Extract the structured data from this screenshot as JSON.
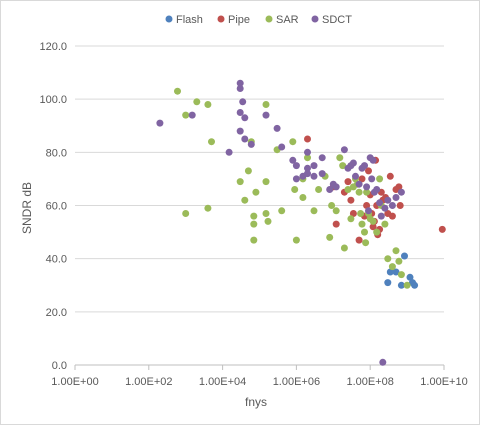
{
  "chart_data": {
    "type": "scatter",
    "title": "",
    "xlabel": "fnys",
    "ylabel": "SNDR dB",
    "x_scale": "log",
    "xlim": [
      1,
      10000000000
    ],
    "ylim": [
      0,
      120
    ],
    "x_ticks": [
      1,
      100,
      10000,
      1000000,
      100000000,
      10000000000
    ],
    "x_tick_labels": [
      "1.00E+00",
      "1.00E+02",
      "1.00E+04",
      "1.00E+06",
      "1.00E+08",
      "1.00E+10"
    ],
    "y_ticks": [
      0,
      20,
      40,
      60,
      80,
      100,
      120
    ],
    "y_tick_labels": [
      "0.0",
      "20.0",
      "40.0",
      "60.0",
      "80.0",
      "100.0",
      "120.0"
    ],
    "grid": "horizontal",
    "legend": "top",
    "series": [
      {
        "name": "Flash",
        "color": "#4f81bd",
        "points": [
          [
            300000000,
            31
          ],
          [
            350000000,
            35
          ],
          [
            500000000,
            35
          ],
          [
            700000000,
            30
          ],
          [
            850000000,
            41
          ],
          [
            1200000000,
            33
          ],
          [
            1400000000,
            31
          ],
          [
            1600000000,
            30
          ]
        ]
      },
      {
        "name": "Pipe",
        "color": "#c0504d",
        "points": [
          [
            2000000,
            85
          ],
          [
            10000000,
            67
          ],
          [
            12000000,
            53
          ],
          [
            20000000,
            65
          ],
          [
            25000000,
            69
          ],
          [
            30000000,
            62
          ],
          [
            35000000,
            57
          ],
          [
            50000000,
            47
          ],
          [
            60000000,
            70
          ],
          [
            70000000,
            56
          ],
          [
            80000000,
            60
          ],
          [
            90000000,
            73
          ],
          [
            100000000,
            64
          ],
          [
            110000000,
            57
          ],
          [
            120000000,
            52
          ],
          [
            130000000,
            54
          ],
          [
            140000000,
            77
          ],
          [
            150000000,
            60
          ],
          [
            160000000,
            49
          ],
          [
            180000000,
            51
          ],
          [
            200000000,
            65
          ],
          [
            220000000,
            62
          ],
          [
            260000000,
            63
          ],
          [
            300000000,
            57
          ],
          [
            350000000,
            71
          ],
          [
            400000000,
            56
          ],
          [
            500000000,
            66
          ],
          [
            600000000,
            67
          ],
          [
            650000000,
            60
          ],
          [
            9000000000,
            51
          ]
        ]
      },
      {
        "name": "SAR",
        "color": "#9bbb59",
        "points": [
          [
            600,
            103
          ],
          [
            1000,
            94
          ],
          [
            1000,
            57
          ],
          [
            2000,
            99
          ],
          [
            4000,
            98
          ],
          [
            4000,
            59
          ],
          [
            5000,
            84
          ],
          [
            30000,
            69
          ],
          [
            40000,
            62
          ],
          [
            50000,
            73
          ],
          [
            60000,
            84
          ],
          [
            70000,
            56
          ],
          [
            70000,
            53
          ],
          [
            70000,
            47
          ],
          [
            80000,
            65
          ],
          [
            150000,
            98
          ],
          [
            150000,
            69
          ],
          [
            150000,
            57
          ],
          [
            170000,
            54
          ],
          [
            300000,
            81
          ],
          [
            400000,
            58
          ],
          [
            800000,
            84
          ],
          [
            900000,
            66
          ],
          [
            1000000,
            47
          ],
          [
            1500000,
            70
          ],
          [
            1500000,
            63
          ],
          [
            2000000,
            78
          ],
          [
            3000000,
            58
          ],
          [
            4000000,
            66
          ],
          [
            6000000,
            71
          ],
          [
            8000000,
            48
          ],
          [
            9000000,
            60
          ],
          [
            12000000,
            58
          ],
          [
            15000000,
            78
          ],
          [
            18000000,
            75
          ],
          [
            20000000,
            44
          ],
          [
            25000000,
            66
          ],
          [
            30000000,
            55
          ],
          [
            35000000,
            67
          ],
          [
            40000000,
            70
          ],
          [
            45000000,
            68
          ],
          [
            50000000,
            65
          ],
          [
            55000000,
            57
          ],
          [
            60000000,
            53
          ],
          [
            70000000,
            50
          ],
          [
            75000000,
            46
          ],
          [
            80000000,
            65
          ],
          [
            90000000,
            57
          ],
          [
            100000000,
            55
          ],
          [
            120000000,
            54
          ],
          [
            150000000,
            50
          ],
          [
            180000000,
            70
          ],
          [
            200000000,
            60
          ],
          [
            250000000,
            53
          ],
          [
            300000000,
            40
          ],
          [
            400000000,
            37
          ],
          [
            500000000,
            43
          ],
          [
            600000000,
            39
          ],
          [
            700000000,
            34
          ],
          [
            1000000000,
            30
          ]
        ]
      },
      {
        "name": "SDCT",
        "color": "#8064a2",
        "points": [
          [
            200,
            91
          ],
          [
            1500,
            94
          ],
          [
            15000,
            80
          ],
          [
            30000,
            106
          ],
          [
            30000,
            104
          ],
          [
            30000,
            95
          ],
          [
            30000,
            88
          ],
          [
            35000,
            99
          ],
          [
            40000,
            93
          ],
          [
            40000,
            85
          ],
          [
            60000,
            83
          ],
          [
            150000,
            94
          ],
          [
            300000,
            89
          ],
          [
            400000,
            82
          ],
          [
            800000,
            77
          ],
          [
            1000000,
            75
          ],
          [
            1000000,
            70
          ],
          [
            1500000,
            71
          ],
          [
            2000000,
            80
          ],
          [
            2000000,
            74
          ],
          [
            2000000,
            72
          ],
          [
            3000000,
            75
          ],
          [
            3000000,
            71
          ],
          [
            5000000,
            78
          ],
          [
            5000000,
            72
          ],
          [
            8000000,
            66
          ],
          [
            10000000,
            68
          ],
          [
            12000000,
            67
          ],
          [
            20000000,
            81
          ],
          [
            25000000,
            74
          ],
          [
            30000000,
            75
          ],
          [
            35000000,
            76
          ],
          [
            40000000,
            71
          ],
          [
            50000000,
            68
          ],
          [
            60000000,
            74
          ],
          [
            70000000,
            75
          ],
          [
            80000000,
            67
          ],
          [
            90000000,
            58
          ],
          [
            100000000,
            78
          ],
          [
            110000000,
            70
          ],
          [
            120000000,
            77
          ],
          [
            130000000,
            65
          ],
          [
            150000000,
            66
          ],
          [
            180000000,
            61
          ],
          [
            200000000,
            56
          ],
          [
            220000000,
            1
          ],
          [
            250000000,
            59
          ],
          [
            300000000,
            62
          ],
          [
            400000000,
            60
          ],
          [
            500000000,
            63
          ],
          [
            700000000,
            65
          ]
        ]
      }
    ]
  }
}
